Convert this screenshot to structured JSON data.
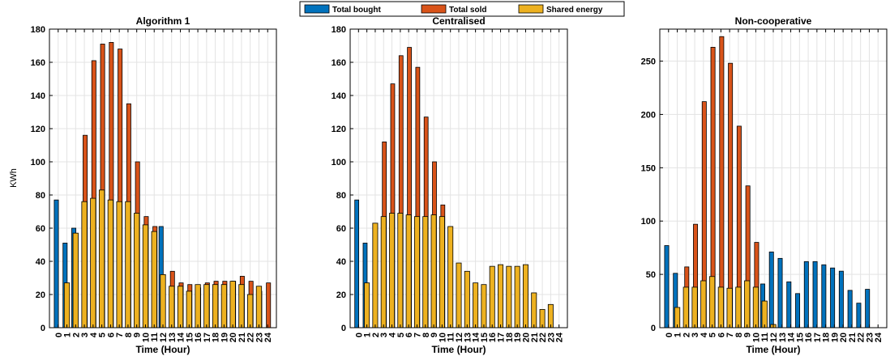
{
  "legend": {
    "items": [
      {
        "label": "Total bought",
        "color": "#0072BD"
      },
      {
        "label": "Total sold",
        "color": "#D95319"
      },
      {
        "label": "Shared energy",
        "color": "#EDB120"
      }
    ]
  },
  "chart_data": [
    {
      "type": "bar",
      "title": "Algorithm 1",
      "xlabel": "Time (Hour)",
      "ylabel": "KWh",
      "ylim": [
        0,
        180
      ],
      "yticks": [
        "0",
        "20",
        "40",
        "60",
        "80",
        "100",
        "120",
        "140",
        "160",
        "180"
      ],
      "categories": [
        "0",
        "1",
        "2",
        "3",
        "4",
        "5",
        "6",
        "7",
        "8",
        "9",
        "10",
        "11",
        "12",
        "13",
        "14",
        "15",
        "16",
        "17",
        "18",
        "19",
        "20",
        "21",
        "22",
        "23",
        "24"
      ],
      "grid": true,
      "series": [
        {
          "name": "Total bought",
          "values": [
            77,
            51,
            60,
            0,
            0,
            0,
            0,
            0,
            0,
            0,
            0,
            0,
            61,
            0,
            0,
            0,
            0,
            0,
            0,
            0,
            0,
            0,
            0,
            0,
            0
          ]
        },
        {
          "name": "Total sold",
          "values": [
            0,
            0,
            0,
            116,
            161,
            171,
            172,
            168,
            135,
            100,
            67,
            61,
            0,
            34,
            27,
            26,
            24,
            27,
            28,
            28,
            28,
            31,
            28,
            22,
            27
          ]
        },
        {
          "name": "Shared energy",
          "values": [
            0,
            27,
            57,
            76,
            78,
            83,
            77,
            76,
            76,
            69,
            62,
            58,
            32,
            25,
            25,
            22,
            26,
            26,
            26,
            26,
            28,
            26,
            20,
            25,
            0
          ]
        }
      ]
    },
    {
      "type": "bar",
      "title": "Centralised",
      "xlabel": "Time (Hour)",
      "ylabel": "",
      "ylim": [
        0,
        180
      ],
      "yticks": [
        "0",
        "20",
        "40",
        "60",
        "80",
        "100",
        "120",
        "140",
        "160",
        "180"
      ],
      "categories": [
        "0",
        "1",
        "2",
        "3",
        "4",
        "5",
        "6",
        "7",
        "8",
        "9",
        "10",
        "11",
        "12",
        "13",
        "14",
        "15",
        "16",
        "17",
        "18",
        "19",
        "20",
        "21",
        "22",
        "23",
        "24"
      ],
      "grid": true,
      "series": [
        {
          "name": "Total bought",
          "values": [
            77,
            51,
            0,
            0,
            0,
            0,
            0,
            0,
            0,
            0,
            0,
            0,
            0,
            0,
            0,
            0,
            0,
            0,
            0,
            0,
            0,
            0,
            0,
            0,
            0
          ]
        },
        {
          "name": "Total sold",
          "values": [
            0,
            0,
            0,
            112,
            147,
            164,
            169,
            157,
            127,
            100,
            74,
            0,
            0,
            0,
            0,
            0,
            0,
            0,
            0,
            0,
            0,
            0,
            0,
            0,
            0
          ]
        },
        {
          "name": "Shared energy",
          "values": [
            0,
            27,
            63,
            67,
            69,
            69,
            68,
            67,
            67,
            68,
            67,
            61,
            39,
            34,
            27,
            26,
            37,
            38,
            37,
            37,
            38,
            21,
            11,
            14,
            0
          ]
        }
      ]
    },
    {
      "type": "bar",
      "title": "Non-cooperative",
      "xlabel": "Time (Hour)",
      "ylabel": "",
      "ylim": [
        0,
        280
      ],
      "yticks": [
        "0",
        "50",
        "100",
        "150",
        "200",
        "250"
      ],
      "categories": [
        "0",
        "1",
        "2",
        "3",
        "4",
        "5",
        "6",
        "7",
        "8",
        "9",
        "10",
        "11",
        "12",
        "13",
        "14",
        "15",
        "16",
        "17",
        "18",
        "19",
        "20",
        "21",
        "22",
        "23",
        "24"
      ],
      "grid": true,
      "series": [
        {
          "name": "Total bought",
          "values": [
            77,
            51,
            0,
            0,
            0,
            0,
            0,
            0,
            0,
            0,
            0,
            41,
            71,
            65,
            43,
            32,
            62,
            62,
            59,
            56,
            53,
            35,
            23,
            36,
            0
          ]
        },
        {
          "name": "Total sold",
          "values": [
            0,
            0,
            57,
            97,
            212,
            263,
            273,
            248,
            189,
            133,
            80,
            0,
            0,
            0,
            0,
            0,
            0,
            0,
            0,
            0,
            0,
            0,
            0,
            0,
            0
          ]
        },
        {
          "name": "Shared energy",
          "values": [
            0,
            19,
            38,
            38,
            44,
            48,
            38,
            37,
            38,
            44,
            38,
            25,
            3,
            0,
            0,
            0,
            0,
            0,
            0,
            0,
            0,
            0,
            0,
            0,
            0
          ]
        }
      ]
    }
  ]
}
